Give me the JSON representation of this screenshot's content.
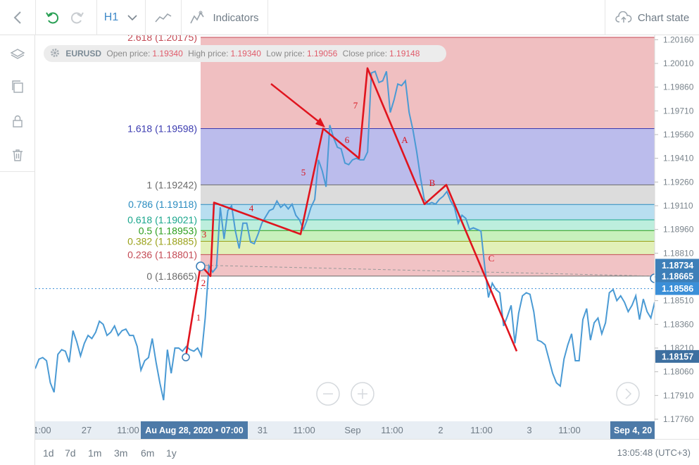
{
  "toolbar": {
    "timeframe": "H1",
    "indicators_label": "Indicators",
    "chart_state_label": "Chart state",
    "icons": [
      "back-chevron-icon",
      "undo-icon",
      "redo-icon",
      "chevron-down-icon",
      "chart-type-icon",
      "indicators-icon",
      "cloud-upload-icon"
    ]
  },
  "sidebar": {
    "icons": [
      "layers-icon",
      "copy-icon",
      "lock-icon",
      "trash-icon"
    ]
  },
  "info": {
    "symbol": "EURUSD",
    "open_label": "Open price:",
    "open": "1.19340",
    "high_label": "High price:",
    "high": "1.19340",
    "low_label": "Low price:",
    "low": "1.19056",
    "close_label": "Close price:",
    "close": "1.19148"
  },
  "fib_levels": [
    {
      "label": "2.618 (1.20175)",
      "price": 1.20175,
      "color": "#c44a55"
    },
    {
      "label": "1.618 (1.19598)",
      "price": 1.19598,
      "color": "#3b3bb0"
    },
    {
      "label": "1 (1.19242)",
      "price": 1.19242,
      "color": "#6a6a6a"
    },
    {
      "label": "0.786 (1.19118)",
      "price": 1.19118,
      "color": "#2a8cc0"
    },
    {
      "label": "0.618 (1.19021)",
      "price": 1.19021,
      "color": "#1aa68c"
    },
    {
      "label": "0.5 (1.18953)",
      "price": 1.18953,
      "color": "#2b9e1d"
    },
    {
      "label": "0.382 (1.18885)",
      "price": 1.18885,
      "color": "#9aa11a"
    },
    {
      "label": "0.236 (1.18801)",
      "price": 1.18801,
      "color": "#c44a55"
    },
    {
      "label": "0 (1.18665)",
      "price": 1.18665,
      "color": "#6a6a6a"
    }
  ],
  "fib_zone_colors": [
    "#f0bfc1",
    "#bbbcec",
    "#dcdcdc",
    "#b8def0",
    "#bdeedd",
    "#c8f0bc",
    "#e2f0b8",
    "#f1c3c5"
  ],
  "price_axis": {
    "ticks": [
      "1.20160",
      "1.20010",
      "1.19860",
      "1.19710",
      "1.19560",
      "1.19410",
      "1.19260",
      "1.19110",
      "1.18960",
      "1.18810",
      "1.18660",
      "1.18510",
      "1.18360",
      "1.18210",
      "1.18060",
      "1.17910",
      "1.17760"
    ],
    "markers": [
      {
        "label": "1.18734",
        "price": 1.18734,
        "color": "#3d7fb8"
      },
      {
        "label": "1.18665",
        "price": 1.18665,
        "color": "#3d7fb8"
      },
      {
        "label": "1.18586",
        "price": 1.18586,
        "color": "#3b8fd8"
      },
      {
        "label": "1.18157",
        "price": 1.18157,
        "color": "#3d6fa0"
      }
    ]
  },
  "time_axis": {
    "ticks": [
      "1:00",
      "27",
      "11:00",
      "31",
      "11:00",
      "Sep",
      "11:00",
      "2",
      "11:00",
      "3",
      "11:00"
    ],
    "highlight_left": "Au Aug 28, 2020 • 07:00",
    "highlight_right": "Sep 4, 20"
  },
  "wave_labels": [
    "1",
    "2",
    "3",
    "4",
    "5",
    "6",
    "7",
    "A",
    "B",
    "C"
  ],
  "periods": [
    "1d",
    "7d",
    "1m",
    "3m",
    "6m",
    "1y"
  ],
  "clock": "13:05:48 (UTC+3)",
  "chart_data": {
    "type": "line",
    "series": [
      {
        "values": [
          1.1808,
          1.1814,
          1.1815,
          1.1813,
          1.1799,
          1.1793,
          1.1817,
          1.182,
          1.1819,
          1.1812,
          1.1832,
          1.1825,
          1.1816,
          1.1824,
          1.1829,
          1.1827,
          1.1831,
          1.1838,
          1.1836,
          1.1829,
          1.1831,
          1.1835,
          1.1829,
          1.1832,
          1.1833,
          1.1829,
          1.1829,
          1.1822,
          1.1807,
          1.1813,
          1.1815,
          1.1827,
          1.1812,
          1.1799,
          1.1788,
          1.182,
          1.1805,
          1.1821,
          1.1821,
          1.1819,
          1.1822,
          1.182,
          1.1819,
          1.1821,
          1.1816,
          1.184,
          1.1873,
          1.1869,
          1.1872,
          1.191,
          1.189,
          1.1908,
          1.1911,
          1.1895,
          1.1884,
          1.19,
          1.19,
          1.1888,
          1.1887,
          1.1893,
          1.19,
          1.1904,
          1.1908,
          1.1909,
          1.1914,
          1.191,
          1.1912,
          1.1909,
          1.1912,
          1.1905,
          1.1902,
          1.1896,
          1.1902,
          1.191,
          1.1915,
          1.194,
          1.1933,
          1.1923,
          1.1962,
          1.1954,
          1.1948,
          1.1947,
          1.1938,
          1.1937,
          1.194,
          1.1941,
          1.194,
          1.194,
          1.1945,
          1.1995,
          1.1996,
          1.1989,
          1.199,
          1.1996,
          1.197,
          1.1978,
          1.1988,
          1.1987,
          1.199,
          1.197,
          1.1959,
          1.1945,
          1.1929,
          1.1915,
          1.1912,
          1.1913,
          1.1912,
          1.1915,
          1.1917,
          1.192,
          1.1914,
          1.191,
          1.19,
          1.1905,
          1.1903,
          1.1896,
          1.1897,
          1.1896,
          1.1895,
          1.1873,
          1.1853,
          1.1862,
          1.1858,
          1.1856,
          1.1835,
          1.1841,
          1.1848,
          1.1824,
          1.1843,
          1.1854,
          1.1856,
          1.1855,
          1.1844,
          1.1826,
          1.1825,
          1.1823,
          1.1814,
          1.1805,
          1.1799,
          1.1797,
          1.1814,
          1.1823,
          1.183,
          1.1813,
          1.1813,
          1.1839,
          1.1846,
          1.1826,
          1.1837,
          1.184,
          1.183,
          1.1837,
          1.1856,
          1.1858,
          1.1851,
          1.1854,
          1.185,
          1.1844,
          1.1848,
          1.1854,
          1.1839,
          1.1852,
          1.1844,
          1.184,
          1.185
        ]
      }
    ],
    "zigzag": [
      [
        1.18157,
        "1"
      ],
      [
        1.18734,
        "2"
      ],
      [
        1.18665,
        "3"
      ],
      [
        1.1913,
        "4"
      ],
      [
        1.1893,
        "5"
      ],
      [
        1.19598,
        "6"
      ],
      [
        1.1941,
        "7"
      ],
      [
        1.1998,
        "A"
      ],
      [
        1.1912,
        "B"
      ],
      [
        1.19242,
        "C"
      ],
      [
        1.1819,
        ""
      ]
    ],
    "ylim": [
      1.1776,
      1.20175
    ],
    "grid": false
  }
}
